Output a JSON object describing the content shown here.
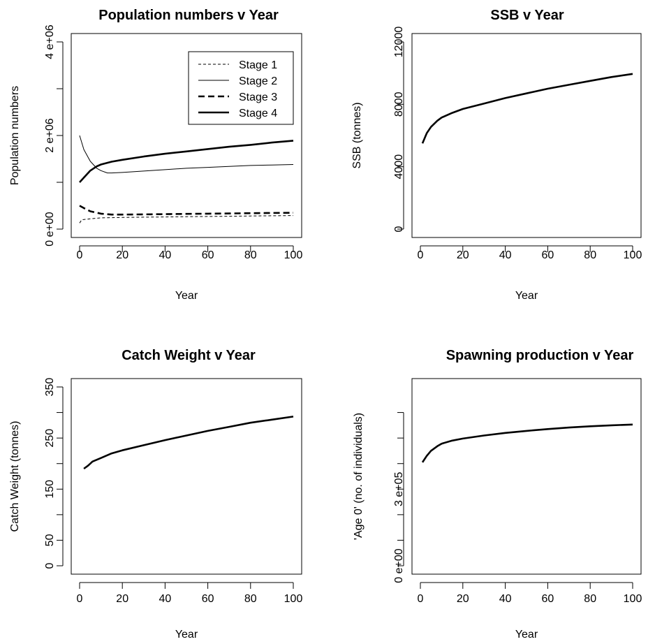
{
  "chart_data": [
    {
      "type": "line",
      "title": "Population numbers v Year",
      "xlabel": "Year",
      "ylabel": "Population numbers",
      "xlim": [
        0,
        100
      ],
      "ylim": [
        0,
        4000000
      ],
      "x_ticks": [
        {
          "value": 0,
          "label": "0"
        },
        {
          "value": 20,
          "label": "20"
        },
        {
          "value": 40,
          "label": "40"
        },
        {
          "value": 60,
          "label": "60"
        },
        {
          "value": 80,
          "label": "80"
        },
        {
          "value": 100,
          "label": "100"
        }
      ],
      "y_ticks": [
        {
          "value": 0,
          "label": "0 e+00"
        },
        {
          "value": 1000000,
          "label": ""
        },
        {
          "value": 2000000,
          "label": "2 e+06"
        },
        {
          "value": 3000000,
          "label": ""
        },
        {
          "value": 4000000,
          "label": "4 e+06"
        }
      ],
      "legend": "top-right",
      "series": [
        {
          "name": "Stage 1",
          "style": "thin-dashed",
          "x": [
            0,
            1,
            5,
            10,
            20,
            30,
            40,
            50,
            60,
            70,
            80,
            90,
            100
          ],
          "y": [
            130000,
            200000,
            220000,
            240000,
            250000,
            255000,
            260000,
            265000,
            270000,
            275000,
            280000,
            285000,
            290000
          ]
        },
        {
          "name": "Stage 2",
          "style": "thin-solid",
          "x": [
            0,
            2,
            5,
            8,
            10,
            13,
            15,
            20,
            30,
            40,
            50,
            60,
            70,
            80,
            90,
            100
          ],
          "y": [
            2000000,
            1700000,
            1450000,
            1300000,
            1250000,
            1200000,
            1200000,
            1210000,
            1240000,
            1270000,
            1300000,
            1320000,
            1340000,
            1360000,
            1370000,
            1380000
          ]
        },
        {
          "name": "Stage 3",
          "style": "thick-dashed",
          "x": [
            0,
            2,
            5,
            10,
            15,
            20,
            30,
            40,
            50,
            60,
            70,
            80,
            90,
            100
          ],
          "y": [
            500000,
            450000,
            380000,
            330000,
            310000,
            310000,
            315000,
            320000,
            325000,
            330000,
            335000,
            340000,
            345000,
            350000
          ]
        },
        {
          "name": "Stage 4",
          "style": "thick-solid",
          "x": [
            0,
            2,
            5,
            8,
            10,
            15,
            20,
            30,
            40,
            50,
            60,
            70,
            80,
            90,
            100
          ],
          "y": [
            1000000,
            1100000,
            1250000,
            1340000,
            1380000,
            1440000,
            1480000,
            1550000,
            1610000,
            1660000,
            1710000,
            1760000,
            1800000,
            1850000,
            1890000
          ]
        }
      ]
    },
    {
      "type": "line",
      "title": "SSB v Year",
      "xlabel": "Year",
      "ylabel": "SSB (tonnes)",
      "xlim": [
        0,
        100
      ],
      "ylim": [
        0,
        12000
      ],
      "x_ticks": [
        {
          "value": 0,
          "label": "0"
        },
        {
          "value": 20,
          "label": "20"
        },
        {
          "value": 40,
          "label": "40"
        },
        {
          "value": 60,
          "label": "60"
        },
        {
          "value": 80,
          "label": "80"
        },
        {
          "value": 100,
          "label": "100"
        }
      ],
      "y_ticks": [
        {
          "value": 0,
          "label": "0"
        },
        {
          "value": 4000,
          "label": "4000"
        },
        {
          "value": 8000,
          "label": "8000"
        },
        {
          "value": 12000,
          "label": "12000"
        }
      ],
      "series": [
        {
          "x": [
            1,
            3,
            5,
            8,
            10,
            15,
            20,
            30,
            40,
            50,
            60,
            70,
            80,
            90,
            100
          ],
          "y": [
            5500,
            6150,
            6550,
            6950,
            7150,
            7450,
            7700,
            8050,
            8400,
            8700,
            9000,
            9250,
            9500,
            9750,
            9950
          ]
        }
      ]
    },
    {
      "type": "line",
      "title": "Catch Weight v Year",
      "xlabel": "Year",
      "ylabel": "Catch Weight (tonnes)",
      "xlim": [
        0,
        100
      ],
      "ylim": [
        0,
        350
      ],
      "x_ticks": [
        {
          "value": 0,
          "label": "0"
        },
        {
          "value": 20,
          "label": "20"
        },
        {
          "value": 40,
          "label": "40"
        },
        {
          "value": 60,
          "label": "60"
        },
        {
          "value": 80,
          "label": "80"
        },
        {
          "value": 100,
          "label": "100"
        }
      ],
      "y_ticks": [
        {
          "value": 0,
          "label": "0"
        },
        {
          "value": 50,
          "label": "50"
        },
        {
          "value": 100,
          "label": ""
        },
        {
          "value": 150,
          "label": "150"
        },
        {
          "value": 200,
          "label": ""
        },
        {
          "value": 250,
          "label": "250"
        },
        {
          "value": 300,
          "label": ""
        },
        {
          "value": 350,
          "label": "350"
        }
      ],
      "series": [
        {
          "x": [
            2,
            4,
            6,
            10,
            15,
            20,
            30,
            40,
            50,
            60,
            70,
            80,
            90,
            100
          ],
          "y": [
            190,
            196,
            204,
            211,
            220,
            226,
            236,
            246,
            255,
            264,
            272,
            280,
            286,
            292
          ]
        }
      ]
    },
    {
      "type": "line",
      "title": "Spawning production v Year",
      "xlabel": "Year",
      "ylabel": "'Age 0' (no. of individuals)",
      "xlim": [
        0,
        100
      ],
      "ylim": [
        0,
        700000
      ],
      "x_ticks": [
        {
          "value": 0,
          "label": "0"
        },
        {
          "value": 20,
          "label": "20"
        },
        {
          "value": 40,
          "label": "40"
        },
        {
          "value": 60,
          "label": "60"
        },
        {
          "value": 80,
          "label": "80"
        },
        {
          "value": 100,
          "label": "100"
        }
      ],
      "y_ticks": [
        {
          "value": 0,
          "label": "0 e+00"
        },
        {
          "value": 100000,
          "label": ""
        },
        {
          "value": 200000,
          "label": ""
        },
        {
          "value": 300000,
          "label": "3 e+05"
        },
        {
          "value": 400000,
          "label": ""
        },
        {
          "value": 500000,
          "label": ""
        },
        {
          "value": 600000,
          "label": ""
        }
      ],
      "series": [
        {
          "x": [
            1,
            3,
            5,
            8,
            10,
            15,
            20,
            30,
            40,
            50,
            60,
            70,
            80,
            90,
            100
          ],
          "y": [
            405000,
            430000,
            450000,
            468000,
            478000,
            490000,
            498000,
            510000,
            520000,
            528000,
            535000,
            541000,
            546000,
            550000,
            553000
          ]
        }
      ]
    }
  ]
}
